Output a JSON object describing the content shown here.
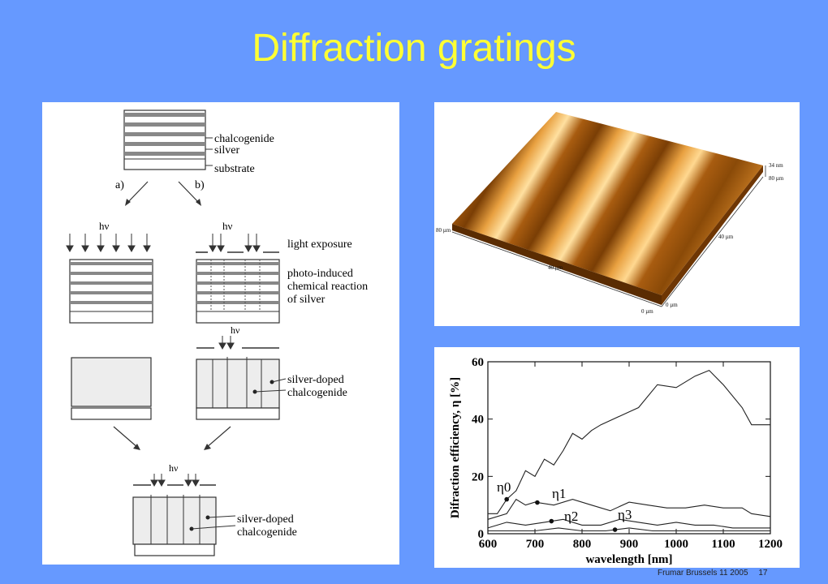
{
  "slide": {
    "title": "Diffraction gratings",
    "footer": {
      "text": "Frumar Brussels 11 2005",
      "page": "17"
    }
  },
  "process_diagram": {
    "layer_labels": [
      "chalcogenide",
      "silver",
      "substrate"
    ],
    "branch_labels": [
      "a)",
      "b)"
    ],
    "photon_label": "hν",
    "step_labels": {
      "exposure": "light exposure",
      "reaction": [
        "photo-induced",
        "chemical reaction",
        "of silver"
      ],
      "doped": [
        "silver-doped",
        "chalcogenide"
      ],
      "final": [
        "silver-doped",
        "chalcogenide"
      ]
    }
  },
  "afm_image": {
    "labels": [
      "34 nm",
      "80 µm",
      "80 µm",
      "40 µm",
      "40 µm",
      "0 µm",
      "0 µm"
    ]
  },
  "chart_data": {
    "type": "line",
    "xlabel": "wavelength [nm]",
    "ylabel": "Difraction efficiency, η [%]",
    "xlim": [
      600,
      1200
    ],
    "ylim": [
      0,
      60
    ],
    "x_ticks": [
      "600",
      "700",
      "800",
      "900",
      "1000",
      "1100",
      "1200"
    ],
    "y_ticks": [
      "0",
      "20",
      "40",
      "60"
    ],
    "grid": false,
    "series": [
      {
        "name": "η0",
        "x": [
          600,
          620,
          640,
          660,
          680,
          700,
          720,
          740,
          760,
          780,
          800,
          820,
          840,
          880,
          920,
          960,
          1000,
          1040,
          1070,
          1100,
          1140,
          1160,
          1200
        ],
        "values": [
          7,
          7,
          12,
          15,
          22,
          20,
          26,
          24,
          29,
          35,
          33,
          36,
          38,
          41,
          44,
          52,
          51,
          55,
          57,
          52,
          44,
          38,
          38
        ]
      },
      {
        "name": "η1",
        "x": [
          600,
          640,
          660,
          680,
          700,
          740,
          780,
          820,
          860,
          900,
          940,
          980,
          1020,
          1060,
          1100,
          1140,
          1160,
          1200
        ],
        "values": [
          5,
          7,
          12,
          10,
          11,
          10,
          12,
          10,
          8,
          11,
          10,
          9,
          9,
          10,
          9,
          9,
          7,
          6
        ]
      },
      {
        "name": "η2",
        "x": [
          600,
          640,
          680,
          720,
          760,
          800,
          840,
          880,
          920,
          960,
          1000,
          1040,
          1080,
          1120,
          1160,
          1200
        ],
        "values": [
          2,
          4,
          3,
          4,
          5,
          3,
          3,
          5,
          4,
          3,
          4,
          3,
          3,
          2,
          2,
          2
        ]
      },
      {
        "name": "η3",
        "x": [
          600,
          650,
          700,
          750,
          800,
          850,
          900,
          950,
          1000,
          1050,
          1100,
          1150,
          1200
        ],
        "values": [
          1,
          1,
          1,
          2,
          1,
          1,
          2,
          1,
          1,
          1,
          1,
          1,
          1
        ]
      }
    ]
  }
}
